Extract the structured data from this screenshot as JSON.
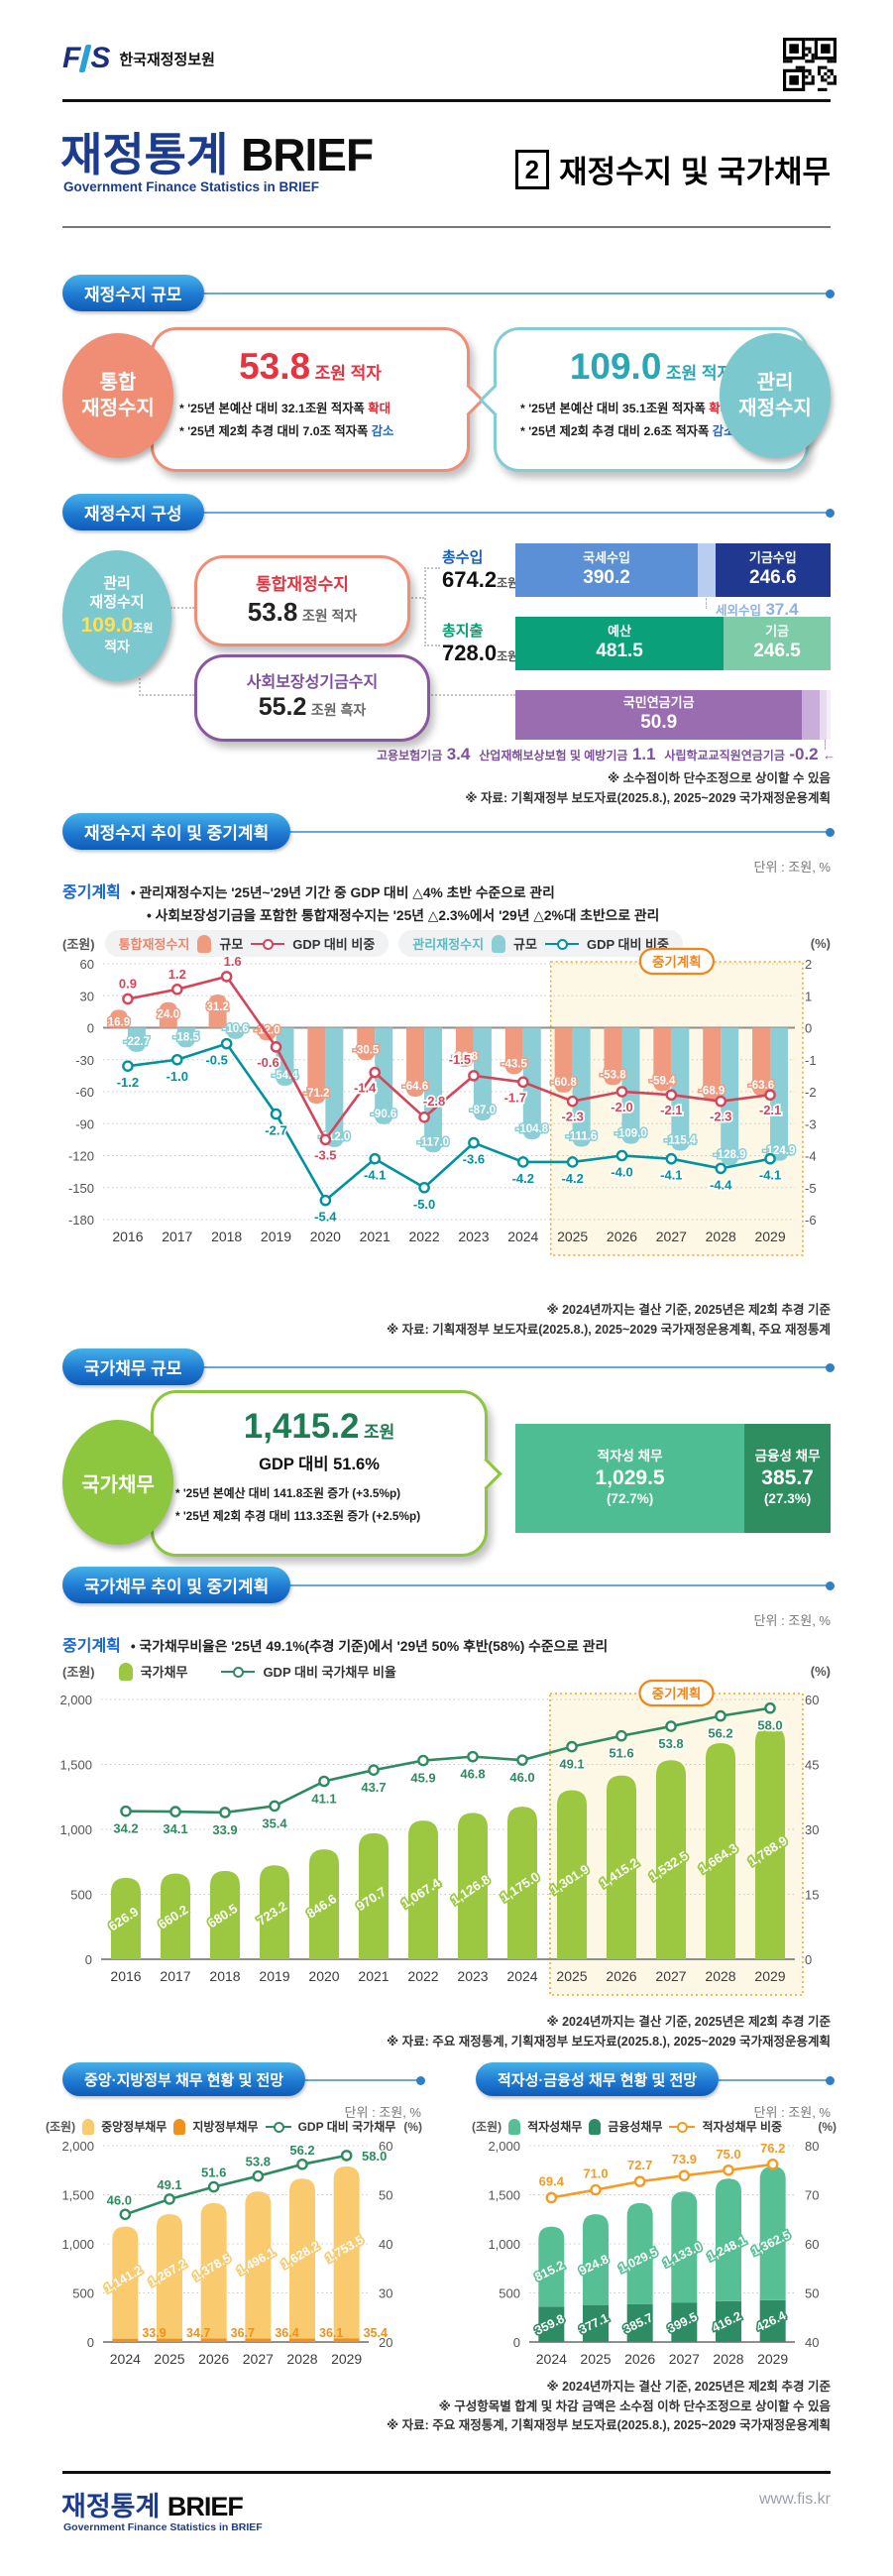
{
  "header": {
    "org": "한국재정정보원",
    "brand_ko": "재정통계",
    "brand_en": "BRIEF",
    "brand_sub": "Government Finance Statistics in BRIEF",
    "issue_no": "2",
    "issue_title": "재정수지 및 국가채무"
  },
  "footer": {
    "url": "www.fis.kr"
  },
  "sections": {
    "balance": {
      "title": "재정수지 규모",
      "integrated": {
        "label1": "통합",
        "label2": "재정수지",
        "value": "53.8",
        "unit": "조원 적자",
        "note1_text": "* '25년 본예산 대비 32.1조원 적자폭 ",
        "note1_em": "확대",
        "note2_text": "* '25년 제2회 추경 대비 7.0조 적자폭 ",
        "note2_em": "감소"
      },
      "managed": {
        "label1": "관리",
        "label2": "재정수지",
        "value": "109.0",
        "unit": "조원 적자",
        "note1_text": "* '25년 본예산 대비 35.1조원 적자폭 ",
        "note1_em": "확대",
        "note2_text": "* '25년 제2회 추경 대비 2.6조 적자폭 ",
        "note2_em": "감소"
      }
    },
    "composition": {
      "title": "재정수지 구성",
      "circle": {
        "label1": "관리",
        "label2": "재정수지",
        "value": "109.0",
        "unit": "조원",
        "status": "적자"
      },
      "integrated_box": {
        "title": "통합재정수지",
        "value": "53.8",
        "unit": "조원 적자"
      },
      "social_box": {
        "title": "사회보장성기금수지",
        "value": "55.2",
        "unit": "조원 흑자"
      },
      "revenue": {
        "label": "총수입",
        "value": "674.2",
        "unit": "조원",
        "seg1_name": "국세수입",
        "seg1_value": "390.2",
        "seg2_name": "세외수입",
        "seg2_value": "37.4",
        "seg3_name": "기금수입",
        "seg3_value": "246.6"
      },
      "expenditure": {
        "label": "총지출",
        "value": "728.0",
        "unit": "조원",
        "seg1_name": "예산",
        "seg1_value": "481.5",
        "seg2_name": "기금",
        "seg2_value": "246.5"
      },
      "fund": {
        "seg1_name": "국민연금기금",
        "seg1_value": "50.9",
        "ann1_name": "고용보험기금",
        "ann1_value": "3.4",
        "ann2_name": "산업재해보상보험 및 예방기금",
        "ann2_value": "1.1",
        "ann3_name": "사립학교교직원연금기금",
        "ann3_value": "-0.2"
      },
      "footnotes": [
        "※ 소수점이하 단수조정으로 상이할 수 있음",
        "※ 자료: 기획재정부 보도자료(2025.8.), 2025~2029 국가재정운용계획"
      ]
    },
    "balance_trend": {
      "title": "재정수지 추이 및 중기계획",
      "unit_label": "단위 : 조원, %",
      "bullets": [
        "• 관리재정수지는 '25년~'29년 기간 중 GDP 대비 △4% 초반 수준으로 관리",
        "• 사회보장성기금을 포함한 통합재정수지는 '25년 △2.3%에서 '29년 △2%대 초반으로 관리"
      ],
      "plan_label": "중기계획",
      "legend": {
        "axis_left": "(조원)",
        "axis_right": "(%)",
        "group1": "통합재정수지",
        "group2": "관리재정수지",
        "bar_label": "규모",
        "line_label": "GDP 대비 비중"
      },
      "footnotes": [
        "※ 2024년까지는 결산 기준, 2025년은 제2회 추경 기준",
        "※ 자료: 기획재정부 보도자료(2025.8.), 2025~2029 국가재정운용계획, 주요 재정통계"
      ]
    },
    "debt": {
      "title": "국가채무 규모",
      "badge": "국가채무",
      "value": "1,415.2",
      "unit": "조원",
      "gdp": "GDP 대비 51.6%",
      "note1": "* '25년 본예산 대비 141.8조원 증가 (+3.5%p)",
      "note2": "* '25년 제2회 추경 대비 113.3조원 증가 (+2.5%p)",
      "seg1_name": "적자성 채무",
      "seg1_value": "1,029.5",
      "seg1_pct": "(72.7%)",
      "seg2_name": "금융성 채무",
      "seg2_value": "385.7",
      "seg2_pct": "(27.3%)"
    },
    "debt_trend": {
      "title": "국가채무 추이 및 중기계획",
      "unit_label": "단위 : 조원, %",
      "bullet": "• 국가채무비율은 '25년 49.1%(추경 기준)에서 '29년 50% 후반(58%) 수준으로 관리",
      "plan_label": "중기계획",
      "legend": {
        "axis_left": "(조원)",
        "axis_right": "(%)",
        "bar": "국가채무",
        "line": "GDP 대비 국가채무 비율"
      },
      "footnotes": [
        "※ 2024년까지는 결산 기준, 2025년은 제2회 추경 기준",
        "※ 자료: 주요 재정통계, 기획재정부 보도자료(2025.8.), 2025~2029 국가재정운용계획"
      ]
    },
    "gov_debt": {
      "title": "중앙·지방정부 채무 현황 및 전망",
      "unit_label": "단위 : 조원, %",
      "legend": {
        "axis_left": "(조원)",
        "axis_right": "(%)",
        "bar1": "중앙정부채무",
        "bar2": "지방정부채무",
        "line": "GDP 대비 국가채무"
      }
    },
    "type_debt": {
      "title": "적자성·금융성 채무 현황 및 전망",
      "unit_label": "단위 : 조원, %",
      "legend": {
        "axis_left": "(조원)",
        "axis_right": "(%)",
        "bar1": "적자성채무",
        "bar2": "금융성채무",
        "line": "적자성채무 비중"
      },
      "footnotes": [
        "※ 2024년까지는 결산 기준, 2025년은 제2회 추경 기준",
        "※ 구성항목별 합계 및 차감 금액은 소수점 이하 단수조정으로 상이할 수 있음",
        "※ 자료: 주요 재정통계, 기획재정부 보도자료(2025.8.), 2025~2029 국가재정운용계획"
      ]
    }
  },
  "chart_data": [
    {
      "id": "fiscal-balance",
      "type": "bar",
      "title": "재정수지 추이 및 중기계획",
      "categories": [
        "2016",
        "2017",
        "2018",
        "2019",
        "2020",
        "2021",
        "2022",
        "2023",
        "2024",
        "2025",
        "2026",
        "2027",
        "2028",
        "2029"
      ],
      "bar_series": [
        {
          "name": "통합재정수지 규모",
          "color": "#f09a7f",
          "values": [
            16.9,
            24.0,
            31.2,
            -12.0,
            -71.2,
            -30.5,
            -64.6,
            -36.8,
            -43.5,
            -60.8,
            -53.8,
            -59.4,
            -68.9,
            -63.6
          ]
        },
        {
          "name": "관리재정수지 규모",
          "color": "#8bced5",
          "values": [
            -22.7,
            -18.5,
            -10.6,
            -54.4,
            -112.0,
            -90.6,
            -117.0,
            -87.0,
            -104.8,
            -111.6,
            -109.0,
            -115.4,
            -128.9,
            -124.9
          ]
        }
      ],
      "line_series": [
        {
          "name": "통합재정수지 GDP 대비 비중",
          "color": "#d5455a",
          "values": [
            0.9,
            1.2,
            1.6,
            -0.6,
            -3.5,
            -1.4,
            -2.8,
            -1.5,
            -1.7,
            -2.3,
            -2.0,
            -2.1,
            -2.3,
            -2.1
          ]
        },
        {
          "name": "관리재정수지 GDP 대비 비중",
          "color": "#00939f",
          "values": [
            -1.2,
            -1.0,
            -0.5,
            -2.7,
            -5.4,
            -4.1,
            -5.0,
            -3.6,
            -4.2,
            -4.2,
            -4.0,
            -4.1,
            -4.4,
            -4.1
          ]
        }
      ],
      "ylim_left": [
        -180,
        60
      ],
      "yticks_left": [
        60,
        30,
        0,
        -30,
        -60,
        -90,
        -120,
        -150,
        -180
      ],
      "ylim_right": [
        -6,
        2
      ],
      "yticks_right": [
        2,
        1,
        0,
        -1,
        -2,
        -3,
        -4,
        -5,
        -6
      ],
      "grid": true,
      "legend_position": "top",
      "highlight": {
        "from": "2025",
        "to": "2029",
        "label": "중기계획"
      }
    },
    {
      "id": "national-debt",
      "type": "bar",
      "title": "국가채무 추이 및 중기계획",
      "categories": [
        "2016",
        "2017",
        "2018",
        "2019",
        "2020",
        "2021",
        "2022",
        "2023",
        "2024",
        "2025",
        "2026",
        "2027",
        "2028",
        "2029"
      ],
      "bar_series": [
        {
          "name": "국가채무",
          "color": "#9bc840",
          "values": [
            626.9,
            660.2,
            680.5,
            723.2,
            846.6,
            970.7,
            1067.4,
            1126.8,
            1175.0,
            1301.9,
            1415.2,
            1532.5,
            1664.3,
            1788.9
          ]
        }
      ],
      "line_series": [
        {
          "name": "GDP 대비 국가채무 비율",
          "color": "#2e8b60",
          "values": [
            34.2,
            34.1,
            33.9,
            35.4,
            41.1,
            43.7,
            45.9,
            46.8,
            46.0,
            49.1,
            51.6,
            53.8,
            56.2,
            58.0
          ]
        }
      ],
      "ylim_left": [
        0,
        2000
      ],
      "yticks_left": [
        2000,
        1500,
        1000,
        500,
        0
      ],
      "ylim_right": [
        0,
        60
      ],
      "yticks_right": [
        60,
        45,
        30,
        15,
        0
      ],
      "grid": true,
      "legend_position": "top",
      "highlight": {
        "from": "2025",
        "to": "2029",
        "label": "중기계획"
      }
    },
    {
      "id": "gov-debt",
      "type": "bar",
      "title": "중앙·지방정부 채무 현황 및 전망",
      "categories": [
        "2024",
        "2025",
        "2026",
        "2027",
        "2028",
        "2029"
      ],
      "bar_series": [
        {
          "name": "중앙정부채무",
          "color": "#f9ca6e",
          "values": [
            1141.2,
            1267.2,
            1378.5,
            1496.1,
            1628.2,
            1753.5
          ]
        },
        {
          "name": "지방정부채무",
          "color": "#f0901d",
          "values": [
            33.9,
            34.7,
            36.7,
            36.4,
            36.1,
            35.4
          ]
        }
      ],
      "line_series": [
        {
          "name": "GDP 대비 국가채무",
          "color": "#2e8b60",
          "values": [
            46.0,
            49.1,
            51.6,
            53.8,
            56.2,
            58.0
          ]
        }
      ],
      "ylim_left": [
        0,
        2000
      ],
      "yticks_left": [
        2000,
        1500,
        1000,
        500,
        0
      ],
      "ylim_right": [
        20,
        60
      ],
      "yticks_right": [
        60,
        50,
        40,
        30,
        20
      ],
      "grid": true,
      "legend_position": "top"
    },
    {
      "id": "type-debt",
      "type": "bar",
      "title": "적자성·금융성 채무 현황 및 전망",
      "categories": [
        "2024",
        "2025",
        "2026",
        "2027",
        "2028",
        "2029"
      ],
      "bar_series": [
        {
          "name": "적자성채무",
          "color": "#57bf94",
          "values": [
            815.2,
            924.8,
            1029.5,
            1133.0,
            1248.1,
            1362.5
          ]
        },
        {
          "name": "금융성채무",
          "color": "#2d8c64",
          "values": [
            359.8,
            377.1,
            385.7,
            399.5,
            416.2,
            426.4
          ]
        }
      ],
      "line_series": [
        {
          "name": "적자성채무 비중",
          "color": "#f59a23",
          "values": [
            69.4,
            71.0,
            72.7,
            73.9,
            75.0,
            76.2
          ]
        }
      ],
      "ylim_left": [
        0,
        2000
      ],
      "yticks_left": [
        2000,
        1500,
        1000,
        500,
        0
      ],
      "ylim_right": [
        40,
        80
      ],
      "yticks_right": [
        80,
        70,
        60,
        50,
        40
      ],
      "grid": true,
      "legend_position": "top"
    }
  ]
}
